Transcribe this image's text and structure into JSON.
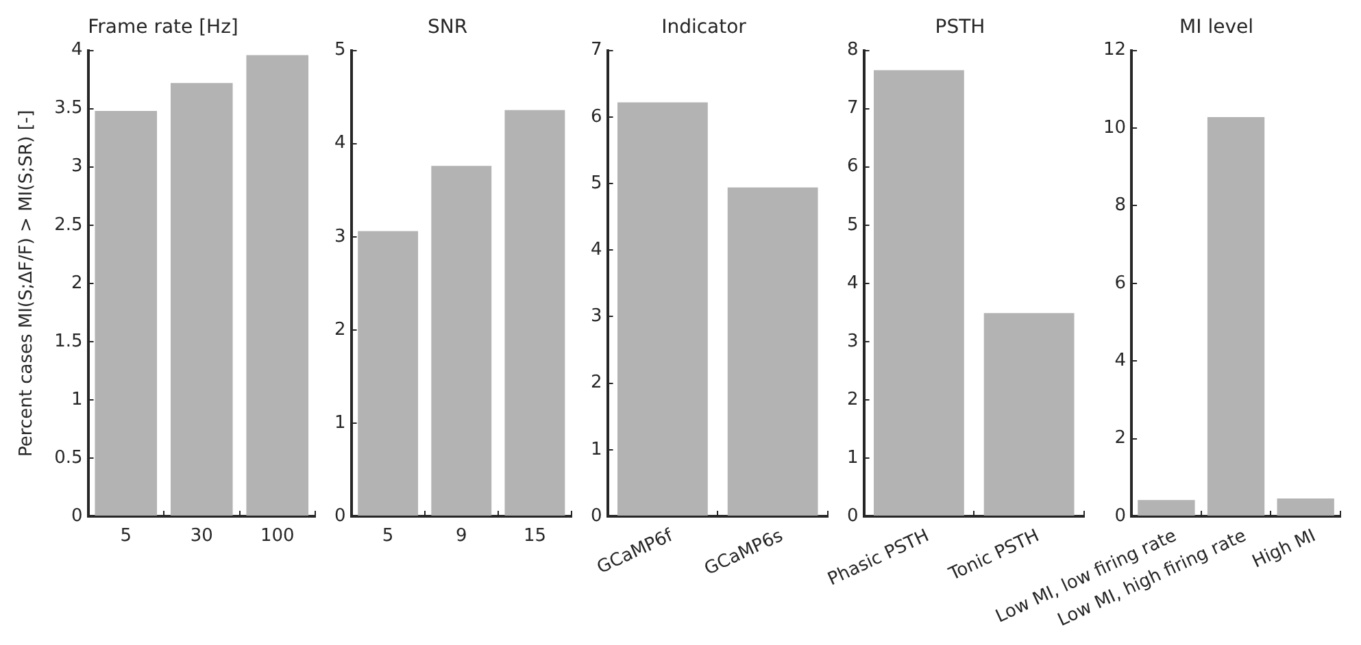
{
  "chart_data": [
    {
      "type": "bar",
      "title": "Frame rate [Hz]",
      "ylabel": "Percent cases MI(S;ΔF/F) > MI(S;SR) [-]",
      "categories": [
        "5",
        "30",
        "100"
      ],
      "values": [
        3.48,
        3.72,
        3.96
      ],
      "color": "#b3b3b3",
      "ylim": [
        0,
        4
      ],
      "yticks": [
        0,
        0.5,
        1,
        1.5,
        2,
        2.5,
        3,
        3.5,
        4
      ],
      "grid": false
    },
    {
      "type": "bar",
      "title": "SNR",
      "categories": [
        "5",
        "9",
        "15"
      ],
      "values": [
        3.06,
        3.76,
        4.36
      ],
      "color": "#b3b3b3",
      "ylim": [
        0,
        5
      ],
      "yticks": [
        0,
        1,
        2,
        3,
        4,
        5
      ],
      "grid": false
    },
    {
      "type": "bar",
      "title": "Indicator",
      "categories": [
        "GCaMP6f",
        "GCaMP6s"
      ],
      "values": [
        6.22,
        4.94
      ],
      "color": "#b3b3b3",
      "ylim": [
        0,
        7
      ],
      "yticks": [
        0,
        1,
        2,
        3,
        4,
        5,
        6,
        7
      ],
      "grid": false
    },
    {
      "type": "bar",
      "title": "PSTH",
      "categories": [
        "Phasic PSTH",
        "Tonic PSTH"
      ],
      "values": [
        7.66,
        3.49
      ],
      "color": "#b3b3b3",
      "ylim": [
        0,
        8
      ],
      "yticks": [
        0,
        1,
        2,
        3,
        4,
        5,
        6,
        7,
        8
      ],
      "grid": false
    },
    {
      "type": "bar",
      "title": "MI level",
      "categories": [
        "Low MI, low firing rate",
        "Low MI, high firing rate",
        "High MI"
      ],
      "values": [
        0.42,
        10.28,
        0.46
      ],
      "color": "#b3b3b3",
      "ylim": [
        0,
        12
      ],
      "yticks": [
        0,
        2,
        4,
        6,
        8,
        10,
        12
      ],
      "grid": false
    }
  ]
}
